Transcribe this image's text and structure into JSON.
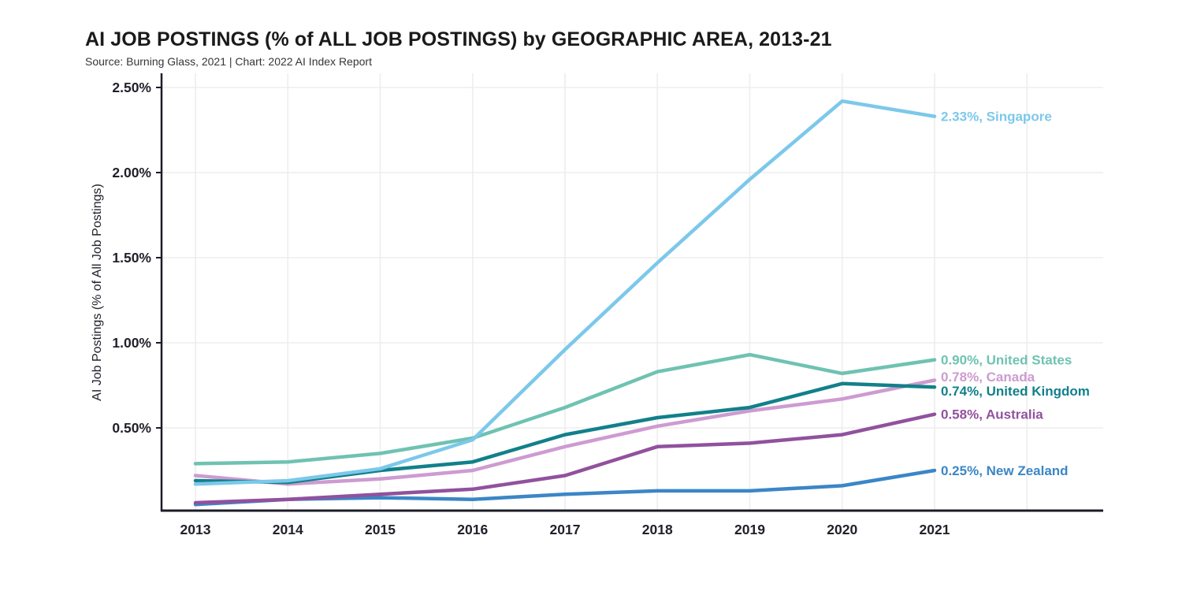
{
  "header": {
    "title": "AI JOB POSTINGS (% of ALL JOB POSTINGS) by GEOGRAPHIC AREA, 2013-21",
    "subtitle": "Source: Burning Glass, 2021 | Chart: 2022 AI Index Report"
  },
  "chart_data": {
    "type": "line",
    "title": "AI JOB POSTINGS (% of ALL JOB POSTINGS) by GEOGRAPHIC AREA, 2013-21",
    "subtitle": "Source: Burning Glass, 2021 | Chart: 2022 AI Index Report",
    "xlabel": "",
    "ylabel": "AI Job Postings (% of All Job Postings)",
    "x": [
      2013,
      2014,
      2015,
      2016,
      2017,
      2018,
      2019,
      2020,
      2021
    ],
    "x_tick_labels": [
      "2013",
      "2014",
      "2015",
      "2016",
      "2017",
      "2018",
      "2019",
      "2020",
      "2021"
    ],
    "y_tick_values": [
      0.5,
      1.0,
      1.5,
      2.0,
      2.5
    ],
    "y_tick_labels": [
      "0.50%",
      "1.00%",
      "1.50%",
      "2.00%",
      "2.50%"
    ],
    "ylim": [
      0,
      2.58
    ],
    "grid": true,
    "legend_position": "end-of-line-labels",
    "series": [
      {
        "name": "New Zealand",
        "color": "#3b86c6",
        "values": [
          0.05,
          0.08,
          0.09,
          0.08,
          0.11,
          0.13,
          0.13,
          0.16,
          0.25
        ],
        "end_label": "0.25%, New Zealand"
      },
      {
        "name": "Australia",
        "color": "#91519e",
        "values": [
          0.06,
          0.08,
          0.11,
          0.14,
          0.22,
          0.39,
          0.41,
          0.46,
          0.58
        ],
        "end_label": "0.58%, Australia"
      },
      {
        "name": "Canada",
        "color": "#cd9bd1",
        "values": [
          0.22,
          0.17,
          0.2,
          0.25,
          0.39,
          0.51,
          0.6,
          0.67,
          0.78
        ],
        "end_label": "0.78%, Canada"
      },
      {
        "name": "United Kingdom",
        "color": "#12808a",
        "values": [
          0.19,
          0.18,
          0.25,
          0.3,
          0.46,
          0.56,
          0.62,
          0.76,
          0.74
        ],
        "end_label": "0.74%, United Kingdom"
      },
      {
        "name": "United States",
        "color": "#6fc2b2",
        "values": [
          0.29,
          0.3,
          0.35,
          0.44,
          0.62,
          0.83,
          0.93,
          0.82,
          0.9
        ],
        "end_label": "0.90%, United States"
      },
      {
        "name": "Singapore",
        "color": "#7cc8ea",
        "values": [
          0.17,
          0.19,
          0.26,
          0.43,
          0.96,
          1.47,
          1.96,
          2.42,
          2.33
        ],
        "end_label": "2.33%, Singapore"
      }
    ],
    "colors": {
      "axis": "#1c1c28",
      "gridline": "#ededed",
      "tick_text": "#21212b"
    }
  }
}
